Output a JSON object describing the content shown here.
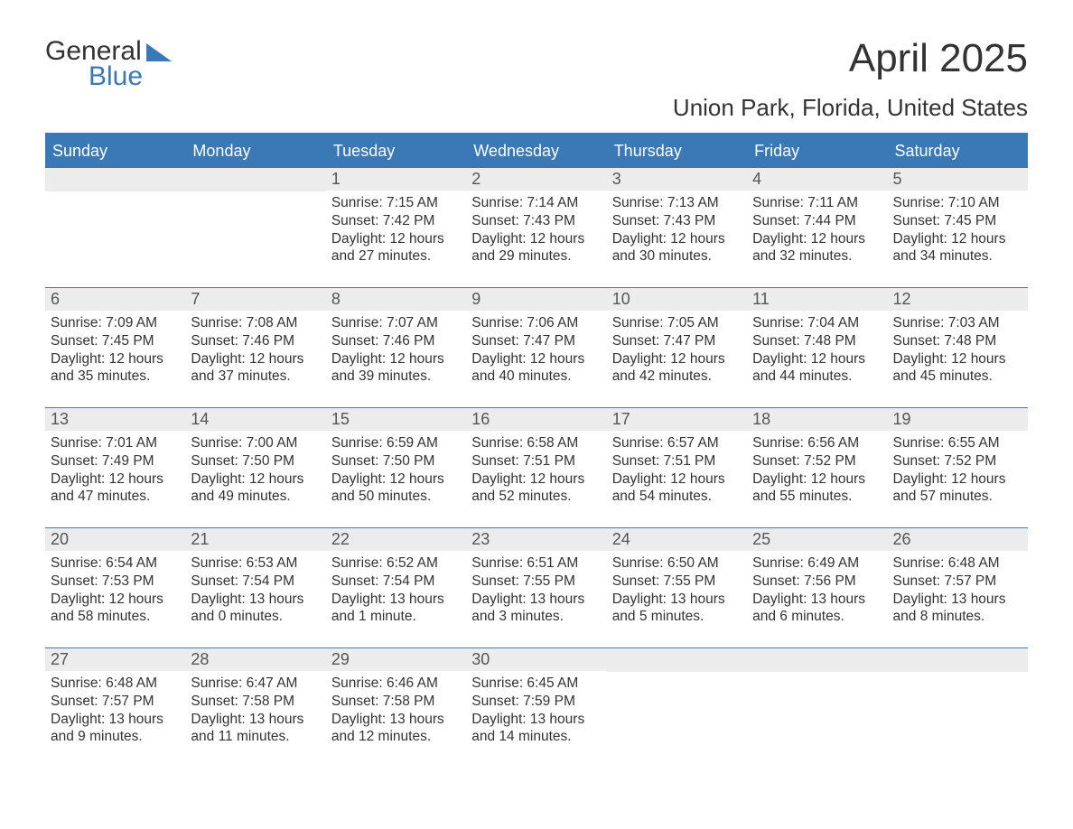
{
  "logo": {
    "word1": "General",
    "word2": "Blue"
  },
  "title": "April 2025",
  "location": "Union Park, Florida, United States",
  "colors": {
    "brand_blue": "#3a78b6",
    "header_text": "#ffffff",
    "body_text": "#333333",
    "daynum_bg": "#ececec",
    "page_bg": "#ffffff"
  },
  "day_headers": [
    "Sunday",
    "Monday",
    "Tuesday",
    "Wednesday",
    "Thursday",
    "Friday",
    "Saturday"
  ],
  "weeks": [
    [
      {
        "num": "",
        "sunrise": "",
        "sunset": "",
        "daylight": ""
      },
      {
        "num": "",
        "sunrise": "",
        "sunset": "",
        "daylight": ""
      },
      {
        "num": "1",
        "sunrise": "Sunrise: 7:15 AM",
        "sunset": "Sunset: 7:42 PM",
        "daylight": "Daylight: 12 hours and 27 minutes."
      },
      {
        "num": "2",
        "sunrise": "Sunrise: 7:14 AM",
        "sunset": "Sunset: 7:43 PM",
        "daylight": "Daylight: 12 hours and 29 minutes."
      },
      {
        "num": "3",
        "sunrise": "Sunrise: 7:13 AM",
        "sunset": "Sunset: 7:43 PM",
        "daylight": "Daylight: 12 hours and 30 minutes."
      },
      {
        "num": "4",
        "sunrise": "Sunrise: 7:11 AM",
        "sunset": "Sunset: 7:44 PM",
        "daylight": "Daylight: 12 hours and 32 minutes."
      },
      {
        "num": "5",
        "sunrise": "Sunrise: 7:10 AM",
        "sunset": "Sunset: 7:45 PM",
        "daylight": "Daylight: 12 hours and 34 minutes."
      }
    ],
    [
      {
        "num": "6",
        "sunrise": "Sunrise: 7:09 AM",
        "sunset": "Sunset: 7:45 PM",
        "daylight": "Daylight: 12 hours and 35 minutes."
      },
      {
        "num": "7",
        "sunrise": "Sunrise: 7:08 AM",
        "sunset": "Sunset: 7:46 PM",
        "daylight": "Daylight: 12 hours and 37 minutes."
      },
      {
        "num": "8",
        "sunrise": "Sunrise: 7:07 AM",
        "sunset": "Sunset: 7:46 PM",
        "daylight": "Daylight: 12 hours and 39 minutes."
      },
      {
        "num": "9",
        "sunrise": "Sunrise: 7:06 AM",
        "sunset": "Sunset: 7:47 PM",
        "daylight": "Daylight: 12 hours and 40 minutes."
      },
      {
        "num": "10",
        "sunrise": "Sunrise: 7:05 AM",
        "sunset": "Sunset: 7:47 PM",
        "daylight": "Daylight: 12 hours and 42 minutes."
      },
      {
        "num": "11",
        "sunrise": "Sunrise: 7:04 AM",
        "sunset": "Sunset: 7:48 PM",
        "daylight": "Daylight: 12 hours and 44 minutes."
      },
      {
        "num": "12",
        "sunrise": "Sunrise: 7:03 AM",
        "sunset": "Sunset: 7:48 PM",
        "daylight": "Daylight: 12 hours and 45 minutes."
      }
    ],
    [
      {
        "num": "13",
        "sunrise": "Sunrise: 7:01 AM",
        "sunset": "Sunset: 7:49 PM",
        "daylight": "Daylight: 12 hours and 47 minutes."
      },
      {
        "num": "14",
        "sunrise": "Sunrise: 7:00 AM",
        "sunset": "Sunset: 7:50 PM",
        "daylight": "Daylight: 12 hours and 49 minutes."
      },
      {
        "num": "15",
        "sunrise": "Sunrise: 6:59 AM",
        "sunset": "Sunset: 7:50 PM",
        "daylight": "Daylight: 12 hours and 50 minutes."
      },
      {
        "num": "16",
        "sunrise": "Sunrise: 6:58 AM",
        "sunset": "Sunset: 7:51 PM",
        "daylight": "Daylight: 12 hours and 52 minutes."
      },
      {
        "num": "17",
        "sunrise": "Sunrise: 6:57 AM",
        "sunset": "Sunset: 7:51 PM",
        "daylight": "Daylight: 12 hours and 54 minutes."
      },
      {
        "num": "18",
        "sunrise": "Sunrise: 6:56 AM",
        "sunset": "Sunset: 7:52 PM",
        "daylight": "Daylight: 12 hours and 55 minutes."
      },
      {
        "num": "19",
        "sunrise": "Sunrise: 6:55 AM",
        "sunset": "Sunset: 7:52 PM",
        "daylight": "Daylight: 12 hours and 57 minutes."
      }
    ],
    [
      {
        "num": "20",
        "sunrise": "Sunrise: 6:54 AM",
        "sunset": "Sunset: 7:53 PM",
        "daylight": "Daylight: 12 hours and 58 minutes."
      },
      {
        "num": "21",
        "sunrise": "Sunrise: 6:53 AM",
        "sunset": "Sunset: 7:54 PM",
        "daylight": "Daylight: 13 hours and 0 minutes."
      },
      {
        "num": "22",
        "sunrise": "Sunrise: 6:52 AM",
        "sunset": "Sunset: 7:54 PM",
        "daylight": "Daylight: 13 hours and 1 minute."
      },
      {
        "num": "23",
        "sunrise": "Sunrise: 6:51 AM",
        "sunset": "Sunset: 7:55 PM",
        "daylight": "Daylight: 13 hours and 3 minutes."
      },
      {
        "num": "24",
        "sunrise": "Sunrise: 6:50 AM",
        "sunset": "Sunset: 7:55 PM",
        "daylight": "Daylight: 13 hours and 5 minutes."
      },
      {
        "num": "25",
        "sunrise": "Sunrise: 6:49 AM",
        "sunset": "Sunset: 7:56 PM",
        "daylight": "Daylight: 13 hours and 6 minutes."
      },
      {
        "num": "26",
        "sunrise": "Sunrise: 6:48 AM",
        "sunset": "Sunset: 7:57 PM",
        "daylight": "Daylight: 13 hours and 8 minutes."
      }
    ],
    [
      {
        "num": "27",
        "sunrise": "Sunrise: 6:48 AM",
        "sunset": "Sunset: 7:57 PM",
        "daylight": "Daylight: 13 hours and 9 minutes."
      },
      {
        "num": "28",
        "sunrise": "Sunrise: 6:47 AM",
        "sunset": "Sunset: 7:58 PM",
        "daylight": "Daylight: 13 hours and 11 minutes."
      },
      {
        "num": "29",
        "sunrise": "Sunrise: 6:46 AM",
        "sunset": "Sunset: 7:58 PM",
        "daylight": "Daylight: 13 hours and 12 minutes."
      },
      {
        "num": "30",
        "sunrise": "Sunrise: 6:45 AM",
        "sunset": "Sunset: 7:59 PM",
        "daylight": "Daylight: 13 hours and 14 minutes."
      },
      {
        "num": "",
        "sunrise": "",
        "sunset": "",
        "daylight": ""
      },
      {
        "num": "",
        "sunrise": "",
        "sunset": "",
        "daylight": ""
      },
      {
        "num": "",
        "sunrise": "",
        "sunset": "",
        "daylight": ""
      }
    ]
  ]
}
